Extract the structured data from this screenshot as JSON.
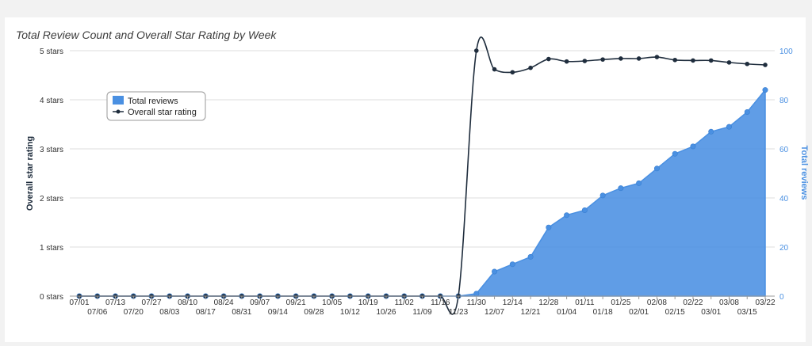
{
  "chart_data": {
    "type": "line",
    "title": "Total Review Count and Overall Star Rating by Week",
    "x": [
      "07/01",
      "07/06",
      "07/13",
      "07/20",
      "07/27",
      "08/03",
      "08/10",
      "08/17",
      "08/24",
      "08/31",
      "09/07",
      "09/14",
      "09/21",
      "09/28",
      "10/05",
      "10/12",
      "10/19",
      "10/26",
      "11/02",
      "11/09",
      "11/16",
      "11/23",
      "11/30",
      "12/07",
      "12/14",
      "12/21",
      "12/28",
      "01/04",
      "01/11",
      "01/18",
      "01/25",
      "02/01",
      "02/08",
      "02/15",
      "02/22",
      "03/01",
      "03/08",
      "03/15",
      "03/22"
    ],
    "y_left": {
      "label": "Overall star rating",
      "ticks": [
        "0 stars",
        "1 stars",
        "2 stars",
        "3 stars",
        "4 stars",
        "5 stars"
      ],
      "range": [
        0,
        5
      ]
    },
    "y_right": {
      "label": "Total reviews",
      "ticks": [
        "0",
        "20",
        "40",
        "60",
        "80",
        "100"
      ],
      "range": [
        0,
        100
      ]
    },
    "series": [
      {
        "name": "Total reviews",
        "type": "area",
        "axis": "right",
        "color": "#4a90e2",
        "values": [
          0,
          0,
          0,
          0,
          0,
          0,
          0,
          0,
          0,
          0,
          0,
          0,
          0,
          0,
          0,
          0,
          0,
          0,
          0,
          0,
          0,
          0,
          1,
          10,
          13,
          16,
          28,
          33,
          35,
          41,
          44,
          46,
          52,
          58,
          61,
          67,
          69,
          75,
          84
        ]
      },
      {
        "name": "Overall star rating",
        "type": "line",
        "axis": "left",
        "color": "#1f2d3d",
        "values": [
          0,
          0,
          0,
          0,
          0,
          0,
          0,
          0,
          0,
          0,
          0,
          0,
          0,
          0,
          0,
          0,
          0,
          0,
          0,
          0,
          0,
          0,
          5.0,
          4.62,
          4.56,
          4.65,
          4.83,
          4.78,
          4.79,
          4.82,
          4.84,
          4.84,
          4.87,
          4.81,
          4.8,
          4.8,
          4.76,
          4.73,
          4.71
        ]
      }
    ],
    "legend": {
      "placement": "top-left"
    },
    "grid": true
  }
}
